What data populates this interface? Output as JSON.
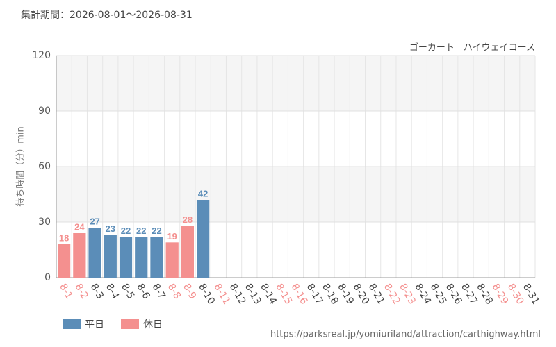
{
  "chart_data": {
    "type": "bar",
    "subtitle": "集計期間：2026-08-01～2026-08-31",
    "title": "ゴーカート　ハイウェイコース",
    "y_label": "待ち時間（分）min",
    "source": "https://parksreal.jp/yomiuriland/attraction/carthighway.html",
    "categories": [
      "8-1",
      "8-2",
      "8-3",
      "8-4",
      "8-5",
      "8-6",
      "8-7",
      "8-8",
      "8-9",
      "8-10",
      "8-11",
      "8-12",
      "8-13",
      "8-14",
      "8-15",
      "8-16",
      "8-17",
      "8-18",
      "8-19",
      "8-20",
      "8-21",
      "8-22",
      "8-23",
      "8-24",
      "8-25",
      "8-26",
      "8-27",
      "8-28",
      "8-29",
      "8-30",
      "8-31"
    ],
    "holiday": [
      true,
      true,
      false,
      false,
      false,
      false,
      false,
      true,
      true,
      false,
      true,
      false,
      false,
      false,
      true,
      true,
      false,
      false,
      false,
      false,
      false,
      true,
      true,
      false,
      false,
      false,
      false,
      false,
      true,
      true,
      false
    ],
    "series": [
      {
        "name": "平日",
        "color": "#5b8db8",
        "values": [
          null,
          null,
          27,
          23,
          22,
          22,
          22,
          null,
          null,
          42,
          null,
          null,
          null,
          null,
          null,
          null,
          null,
          null,
          null,
          null,
          null,
          null,
          null,
          null,
          null,
          null,
          null,
          null,
          null,
          null,
          null
        ]
      },
      {
        "name": "休日",
        "color": "#f4908f",
        "values": [
          18,
          24,
          null,
          null,
          null,
          null,
          null,
          19,
          28,
          null,
          null,
          null,
          null,
          null,
          null,
          null,
          null,
          null,
          null,
          null,
          null,
          null,
          null,
          null,
          null,
          null,
          null,
          null,
          null,
          null,
          null
        ]
      }
    ],
    "ylim": [
      0,
      120
    ],
    "yticks": [
      0,
      30,
      60,
      90,
      120
    ],
    "grid": true
  }
}
